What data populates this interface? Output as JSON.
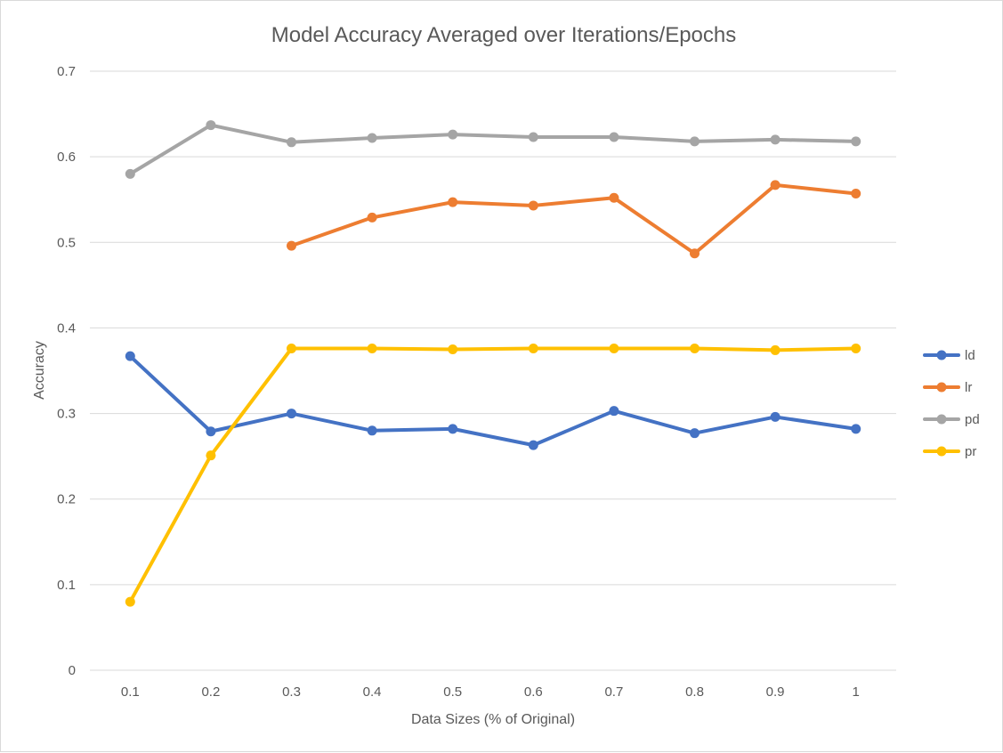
{
  "chart_data": {
    "type": "line",
    "title": "Model Accuracy Averaged over Iterations/Epochs",
    "xlabel": "Data Sizes (% of Original)",
    "ylabel": "Accuracy",
    "categories": [
      "0.1",
      "0.2",
      "0.3",
      "0.4",
      "0.5",
      "0.6",
      "0.7",
      "0.8",
      "0.9",
      "1"
    ],
    "y_ticks": [
      "0",
      "0.1",
      "0.2",
      "0.3",
      "0.4",
      "0.5",
      "0.6",
      "0.7"
    ],
    "ylim": [
      0,
      0.7
    ],
    "grid": true,
    "legend_position": "right",
    "series": [
      {
        "name": "ld",
        "color": "#4472C4",
        "values": [
          0.367,
          0.279,
          0.3,
          0.28,
          0.282,
          0.263,
          0.303,
          0.277,
          0.296,
          0.282
        ]
      },
      {
        "name": "lr",
        "color": "#ED7D31",
        "values": [
          null,
          null,
          0.496,
          0.529,
          0.547,
          0.543,
          0.552,
          0.487,
          0.567,
          0.557
        ]
      },
      {
        "name": "pd",
        "color": "#A5A5A5",
        "values": [
          0.58,
          0.637,
          0.617,
          0.622,
          0.626,
          0.623,
          0.623,
          0.618,
          0.62,
          0.618
        ]
      },
      {
        "name": "pr",
        "color": "#FFC000",
        "values": [
          0.08,
          0.251,
          0.376,
          0.376,
          0.375,
          0.376,
          0.376,
          0.376,
          0.374,
          0.376
        ]
      }
    ]
  }
}
